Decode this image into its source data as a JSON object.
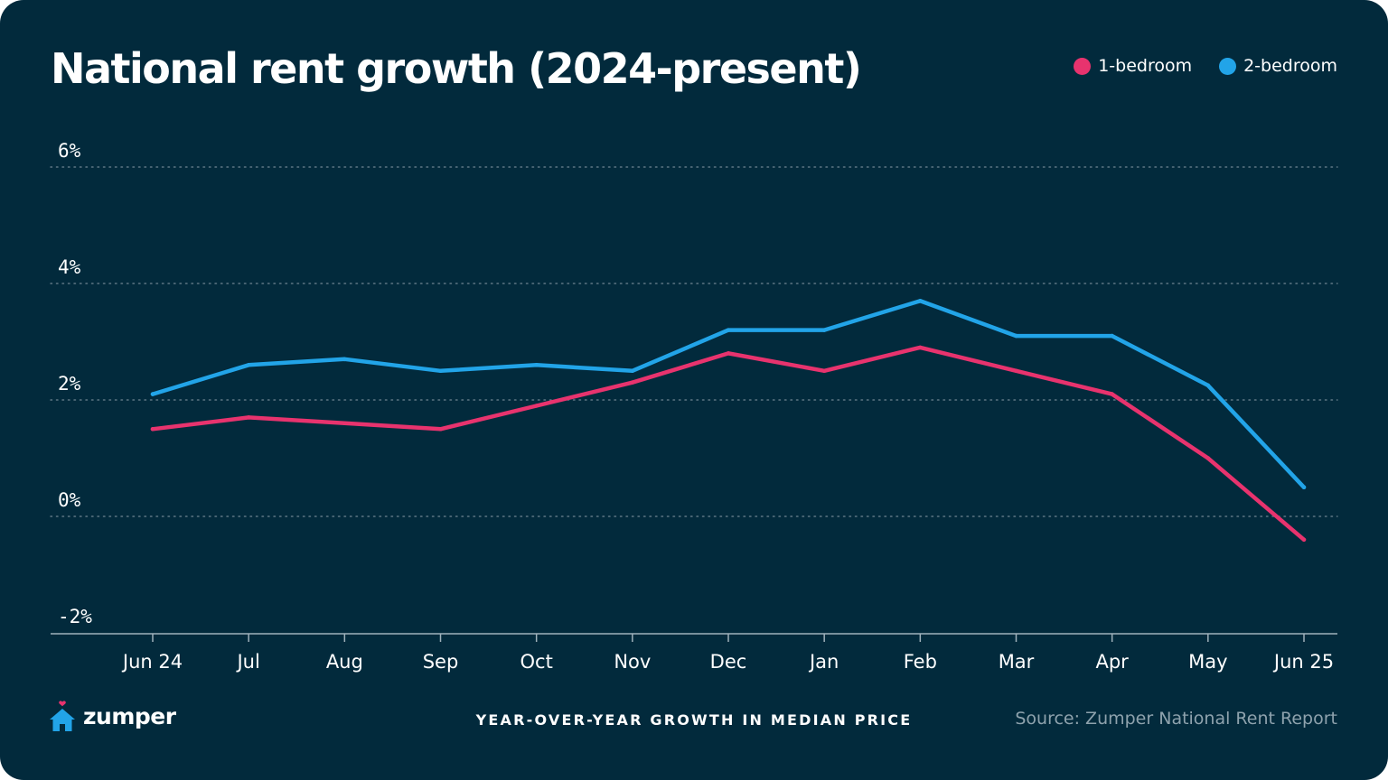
{
  "colors": {
    "background": "#022a3c",
    "text": "#ffffff",
    "grid": "#5e7684",
    "muted": "#8ea2ad",
    "one_bedroom": "#e8336e",
    "two_bedroom": "#22a4e8"
  },
  "brand": {
    "name": "zumper",
    "icon": "house-heart-icon"
  },
  "footer": {
    "center_label": "YEAR-OVER-YEAR GROWTH IN MEDIAN PRICE",
    "source": "Source: Zumper National Rent Report"
  },
  "chart_data": {
    "type": "line",
    "title": "National rent growth (2024-present)",
    "xlabel": "",
    "ylabel": "",
    "categories": [
      "Jun 24",
      "Jul",
      "Aug",
      "Sep",
      "Oct",
      "Nov",
      "Dec",
      "Jan",
      "Feb",
      "Mar",
      "Apr",
      "May",
      "Jun 25"
    ],
    "yticks": [
      6,
      4,
      2,
      0,
      -2
    ],
    "ytick_labels": [
      "6%",
      "4%",
      "2%",
      "0%",
      "-2%"
    ],
    "ylim": [
      -2,
      6
    ],
    "grid": true,
    "legend_position": "top-right",
    "series": [
      {
        "name": "1-bedroom",
        "color": "#e8336e",
        "values": [
          1.5,
          1.7,
          1.6,
          1.5,
          1.9,
          2.3,
          2.8,
          2.5,
          2.9,
          2.5,
          2.1,
          1.0,
          -0.4
        ]
      },
      {
        "name": "2-bedroom",
        "color": "#22a4e8",
        "values": [
          2.1,
          2.6,
          2.7,
          2.5,
          2.6,
          2.5,
          3.2,
          3.2,
          3.7,
          3.1,
          3.1,
          2.25,
          0.5
        ]
      }
    ]
  }
}
